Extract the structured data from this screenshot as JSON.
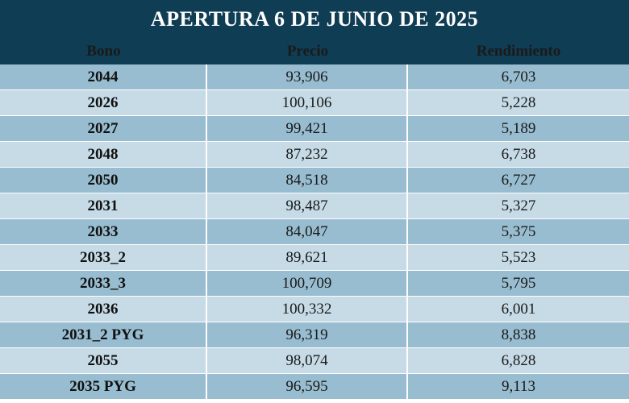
{
  "title": "APERTURA 6 DE JUNIO DE 2025",
  "headers": {
    "bono": "Bono",
    "precio": "Precio",
    "rendimiento": "Rendimiento"
  },
  "rows": [
    {
      "bono": "2044",
      "precio": "93,906",
      "rendimiento": "6,703"
    },
    {
      "bono": "2026",
      "precio": "100,106",
      "rendimiento": "5,228"
    },
    {
      "bono": "2027",
      "precio": "99,421",
      "rendimiento": "5,189"
    },
    {
      "bono": "2048",
      "precio": "87,232",
      "rendimiento": "6,738"
    },
    {
      "bono": "2050",
      "precio": "84,518",
      "rendimiento": "6,727"
    },
    {
      "bono": "2031",
      "precio": "98,487",
      "rendimiento": "5,327"
    },
    {
      "bono": "2033",
      "precio": "84,047",
      "rendimiento": "5,375"
    },
    {
      "bono": "2033_2",
      "precio": "89,621",
      "rendimiento": "5,523"
    },
    {
      "bono": "2033_3",
      "precio": "100,709",
      "rendimiento": "5,795"
    },
    {
      "bono": "2036",
      "precio": "100,332",
      "rendimiento": "6,001"
    },
    {
      "bono": "2031_2 PYG",
      "precio": "96,319",
      "rendimiento": "8,838"
    },
    {
      "bono": "2055",
      "precio": "98,074",
      "rendimiento": "6,828"
    },
    {
      "bono": "2035 PYG",
      "precio": "96,595",
      "rendimiento": "9,113"
    }
  ],
  "colors": {
    "header_bg": "#0f3d54",
    "row_dark": "#98bdd0",
    "row_light": "#c6dbe6"
  }
}
